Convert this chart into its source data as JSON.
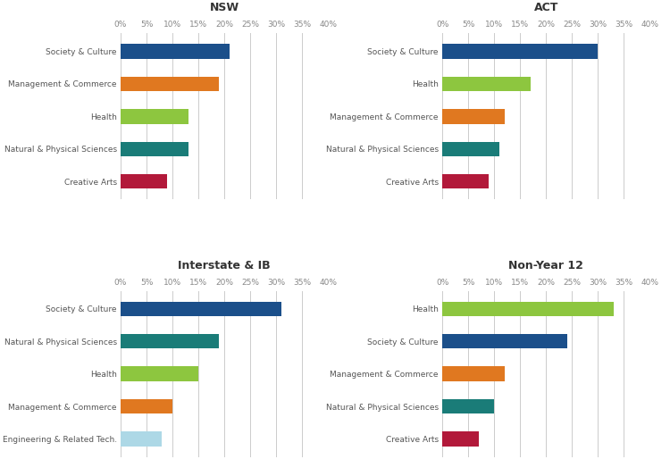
{
  "panels": [
    {
      "title": "NSW",
      "categories": [
        "Society & Culture",
        "Management & Commerce",
        "Health",
        "Natural & Physical Sciences",
        "Creative Arts"
      ],
      "values": [
        21,
        19,
        13,
        13,
        9
      ],
      "colors": [
        "#1b4f8a",
        "#e07820",
        "#8dc63f",
        "#1a7c78",
        "#b2193a"
      ]
    },
    {
      "title": "ACT",
      "categories": [
        "Society & Culture",
        "Health",
        "Management & Commerce",
        "Natural & Physical Sciences",
        "Creative Arts"
      ],
      "values": [
        30,
        17,
        12,
        11,
        9
      ],
      "colors": [
        "#1b4f8a",
        "#8dc63f",
        "#e07820",
        "#1a7c78",
        "#b2193a"
      ]
    },
    {
      "title": "Interstate & IB",
      "categories": [
        "Society & Culture",
        "Natural & Physical Sciences",
        "Health",
        "Management & Commerce",
        "Engineering & Related Tech."
      ],
      "values": [
        31,
        19,
        15,
        10,
        8
      ],
      "colors": [
        "#1b4f8a",
        "#1a7c78",
        "#8dc63f",
        "#e07820",
        "#add8e6"
      ]
    },
    {
      "title": "Non-Year 12",
      "categories": [
        "Health",
        "Society & Culture",
        "Management & Commerce",
        "Natural & Physical Sciences",
        "Creative Arts"
      ],
      "values": [
        33,
        24,
        12,
        10,
        7
      ],
      "colors": [
        "#8dc63f",
        "#1b4f8a",
        "#e07820",
        "#1a7c78",
        "#b2193a"
      ]
    }
  ],
  "xlim": [
    0,
    40
  ],
  "xticks": [
    0,
    5,
    10,
    15,
    20,
    25,
    30,
    35,
    40
  ],
  "background_color": "#ffffff",
  "bar_height": 0.45,
  "title_fontsize": 9,
  "tick_fontsize": 6.5,
  "label_fontsize": 6.5,
  "grid_color": "#cccccc",
  "label_color": "#555555",
  "tick_color": "#888888"
}
